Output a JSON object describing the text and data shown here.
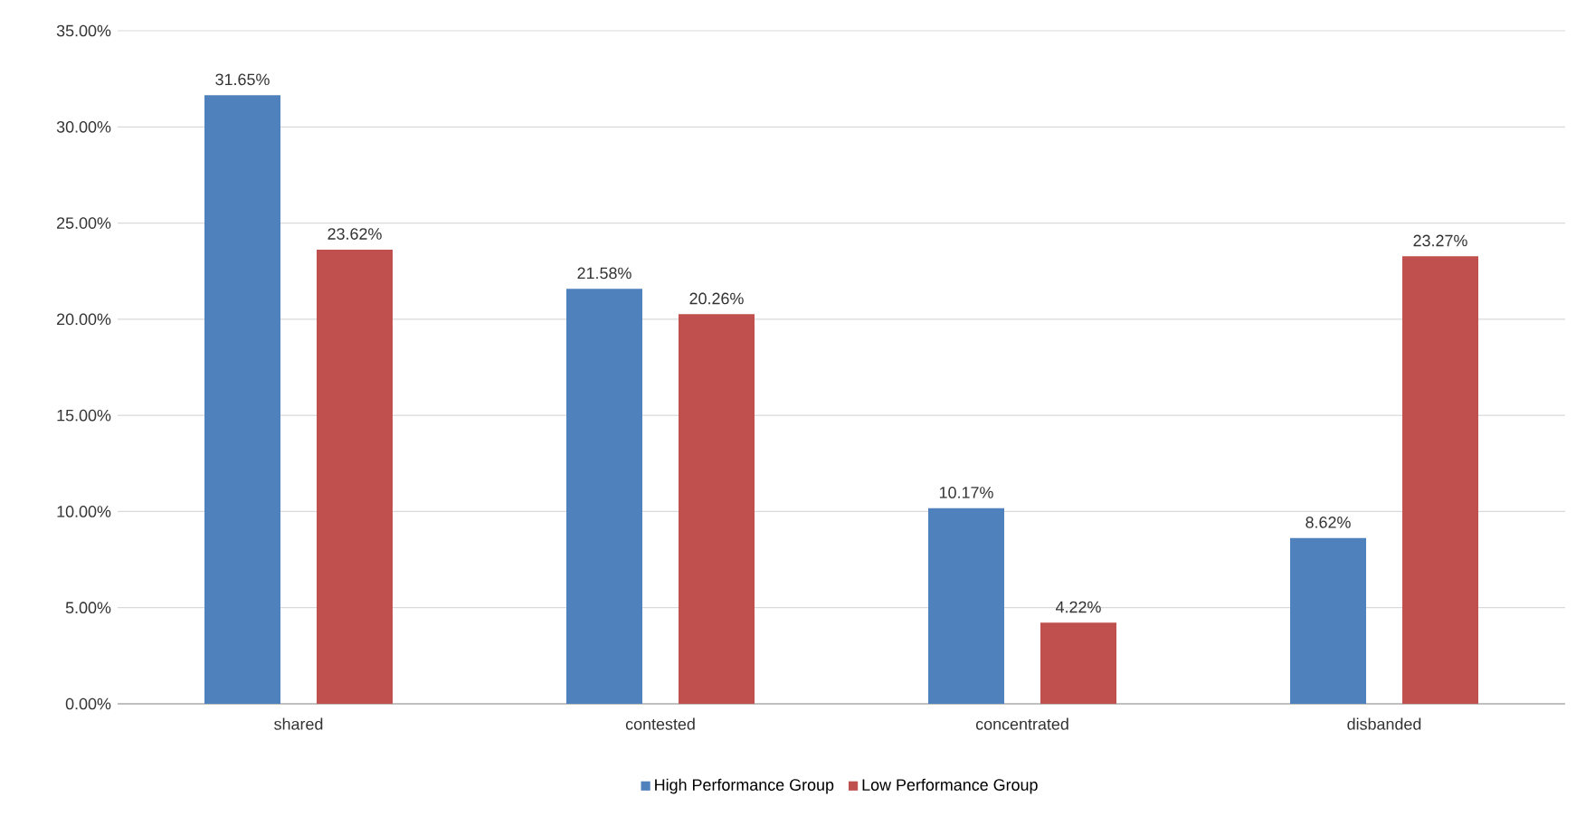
{
  "chart_data": {
    "type": "bar",
    "categories": [
      "shared",
      "contested",
      "concentrated",
      "disbanded"
    ],
    "series": [
      {
        "name": "High Performance Group",
        "color": "#4f81bd",
        "values": [
          31.65,
          21.58,
          10.17,
          8.62
        ],
        "value_labels": [
          "31.65%",
          "21.58%",
          "10.17%",
          "8.62%"
        ]
      },
      {
        "name": "Low Performance Group",
        "color": "#c0504d",
        "values": [
          23.62,
          20.26,
          4.22,
          23.27
        ],
        "value_labels": [
          "23.62%",
          "20.26%",
          "4.22%",
          "23.27%"
        ]
      }
    ],
    "ylim": [
      0,
      35
    ],
    "yticks": [
      {
        "value": 0,
        "label": "0.00%"
      },
      {
        "value": 5,
        "label": "5.00%"
      },
      {
        "value": 10,
        "label": "10.00%"
      },
      {
        "value": 15,
        "label": "15.00%"
      },
      {
        "value": 20,
        "label": "20.00%"
      },
      {
        "value": 25,
        "label": "25.00%"
      },
      {
        "value": 30,
        "label": "30.00%"
      },
      {
        "value": 35,
        "label": "35.00%"
      }
    ],
    "grid": "y",
    "legend": "bottom"
  }
}
